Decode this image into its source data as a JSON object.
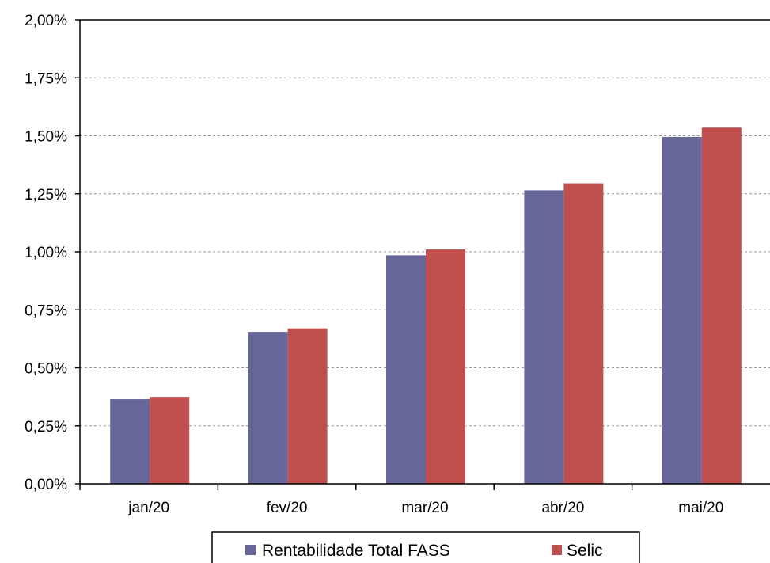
{
  "chart_data": {
    "type": "bar",
    "title": "",
    "xlabel": "",
    "ylabel": "",
    "categories": [
      "jan/20",
      "fev/20",
      "mar/20",
      "abr/20",
      "mai/20"
    ],
    "series": [
      {
        "name": "Rentabilidade Total FASS",
        "color": "#666699",
        "values": [
          0.365,
          0.655,
          0.985,
          1.265,
          1.495
        ]
      },
      {
        "name": "Selic",
        "color": "#c0504d",
        "values": [
          0.375,
          0.67,
          1.01,
          1.295,
          1.535
        ]
      }
    ],
    "ylim": [
      0,
      2.0
    ],
    "y_ticks": [
      0,
      0.25,
      0.5,
      0.75,
      1.0,
      1.25,
      1.5,
      1.75,
      2.0
    ],
    "y_tick_labels": [
      "0,00%",
      "0,25%",
      "0,50%",
      "0,75%",
      "1,00%",
      "1,25%",
      "1,50%",
      "1,75%",
      "2,00%"
    ],
    "grid": true,
    "legend_position": "bottom"
  }
}
